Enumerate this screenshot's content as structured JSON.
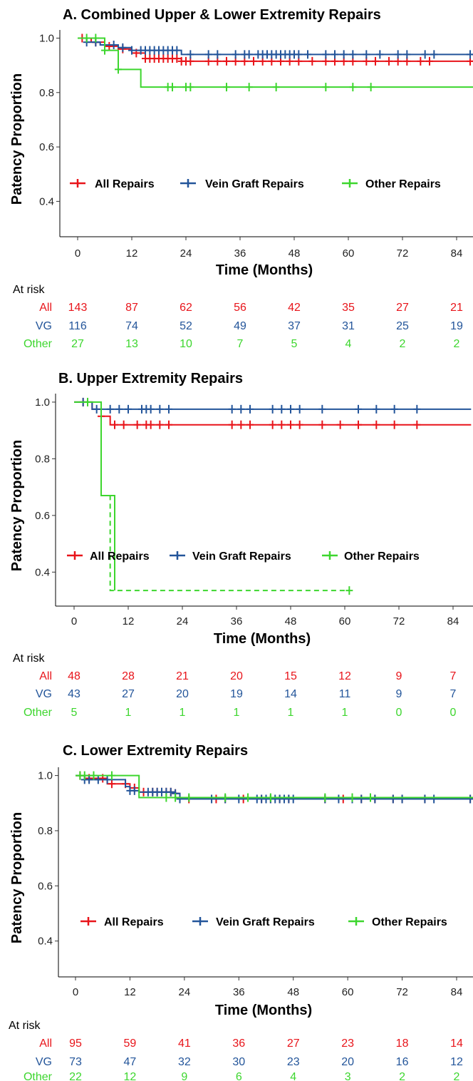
{
  "colors": {
    "all": "#e8141a",
    "vg": "#23559a",
    "other": "#3dd62e"
  },
  "chart_data": [
    {
      "type": "line",
      "title": "A. Combined Upper & Lower Extremity Repairs",
      "xlabel": "Time (Months)",
      "ylabel": "Patency Proportion",
      "xticks": [
        0,
        12,
        24,
        36,
        48,
        60,
        72,
        84
      ],
      "yticks": [
        "0.4",
        "0.6",
        "0.8",
        "1.0"
      ],
      "xlim": [
        -4,
        88
      ],
      "ylim": [
        0.27,
        1.03
      ],
      "legend": [
        "All Repairs",
        "Vein Graft Repairs",
        "Other Repairs"
      ],
      "series": [
        {
          "name": "All Repairs",
          "key": "all",
          "steps": [
            [
              0,
              1.0
            ],
            [
              3,
              0.985
            ],
            [
              6,
              0.97
            ],
            [
              9,
              0.96
            ],
            [
              12,
              0.945
            ],
            [
              15,
              0.925
            ],
            [
              23,
              0.915
            ],
            [
              88,
              0.915
            ]
          ],
          "censors": [
            1,
            4,
            7,
            10,
            13,
            15,
            16,
            17,
            18,
            19,
            20,
            21,
            22,
            23,
            24,
            25,
            29,
            31,
            33,
            35,
            37,
            39,
            41,
            43,
            45,
            47,
            49,
            52,
            55,
            57,
            59,
            61,
            64,
            66,
            69,
            71,
            73,
            76,
            78,
            87
          ]
        },
        {
          "name": "Vein Graft Repairs",
          "key": "vg",
          "steps": [
            [
              0,
              1.0
            ],
            [
              2,
              0.985
            ],
            [
              5,
              0.975
            ],
            [
              9,
              0.965
            ],
            [
              12,
              0.955
            ],
            [
              23,
              0.94
            ],
            [
              88,
              0.94
            ]
          ],
          "censors": [
            2,
            4,
            6,
            8,
            10,
            12,
            14,
            15,
            16,
            17,
            18,
            19,
            20,
            21,
            22,
            25,
            29,
            31,
            35,
            37,
            38,
            40,
            41,
            42,
            43,
            44,
            45,
            46,
            47,
            48,
            49,
            51,
            55,
            57,
            59,
            61,
            64,
            67,
            71,
            73,
            77,
            79,
            87
          ]
        },
        {
          "name": "Other Repairs",
          "key": "other",
          "steps": [
            [
              0,
              1.0
            ],
            [
              6,
              0.955
            ],
            [
              9,
              0.885
            ],
            [
              14,
              0.82
            ],
            [
              88,
              0.82
            ]
          ],
          "censors": [
            2,
            4,
            6,
            9,
            20,
            21,
            24,
            25,
            33,
            38,
            44,
            55,
            61,
            65
          ]
        }
      ],
      "risk_table": {
        "header": "At risk",
        "rows": [
          {
            "label": "All",
            "key": "all",
            "values": [
              "143",
              "87",
              "62",
              "56",
              "42",
              "35",
              "27",
              "21"
            ]
          },
          {
            "label": "VG",
            "key": "vg",
            "values": [
              "116",
              "74",
              "52",
              "49",
              "37",
              "31",
              "25",
              "19"
            ]
          },
          {
            "label": "Other",
            "key": "other",
            "values": [
              "27",
              "13",
              "10",
              "7",
              "5",
              "4",
              "2",
              "2"
            ]
          }
        ]
      }
    },
    {
      "type": "line",
      "title": "B. Upper Extremity Repairs",
      "xlabel": "Time (Months)",
      "ylabel": "Patency Proportion",
      "xticks": [
        0,
        12,
        24,
        36,
        48,
        60,
        72,
        84
      ],
      "yticks": [
        "0.4",
        "0.6",
        "0.8",
        "1.0"
      ],
      "xlim": [
        -4,
        88
      ],
      "ylim": [
        0.28,
        1.03
      ],
      "legend": [
        "All Repairs",
        "Vein Graft Repairs",
        "Other Repairs"
      ],
      "series": [
        {
          "name": "All Repairs",
          "key": "all",
          "steps": [
            [
              0,
              1.0
            ],
            [
              4,
              0.975
            ],
            [
              6,
              0.95
            ],
            [
              8,
              0.92
            ],
            [
              88,
              0.92
            ]
          ],
          "censors": [
            2,
            6,
            9,
            11,
            14,
            16,
            17,
            19,
            21,
            35,
            37,
            39,
            44,
            46,
            48,
            50,
            55,
            59,
            63,
            67,
            71,
            76
          ]
        },
        {
          "name": "Vein Graft Repairs",
          "key": "vg",
          "steps": [
            [
              0,
              1.0
            ],
            [
              4,
              0.975
            ],
            [
              88,
              0.975
            ]
          ],
          "censors": [
            2,
            5,
            8,
            10,
            12,
            15,
            16,
            17,
            19,
            21,
            35,
            37,
            39,
            44,
            46,
            48,
            50,
            55,
            63,
            67,
            71,
            76
          ]
        },
        {
          "name": "Other Repairs",
          "key": "other",
          "steps": [
            [
              0,
              1.0
            ],
            [
              6,
              0.67
            ],
            [
              9,
              0.335
            ],
            [
              61,
              0.335
            ]
          ],
          "dashed_from": 8,
          "censors": [
            3,
            61
          ]
        }
      ],
      "risk_table": {
        "header": "At risk",
        "rows": [
          {
            "label": "All",
            "key": "all",
            "values": [
              "48",
              "28",
              "21",
              "20",
              "15",
              "12",
              "9",
              "7"
            ]
          },
          {
            "label": "VG",
            "key": "vg",
            "values": [
              "43",
              "27",
              "20",
              "19",
              "14",
              "11",
              "9",
              "7"
            ]
          },
          {
            "label": "Other",
            "key": "other",
            "values": [
              "5",
              "1",
              "1",
              "1",
              "1",
              "1",
              "0",
              "0"
            ]
          }
        ]
      }
    },
    {
      "type": "line",
      "title": "C. Lower Extremity Repairs",
      "xlabel": "Time (Months)",
      "ylabel": "Patency Proportion",
      "xticks": [
        0,
        12,
        24,
        36,
        48,
        60,
        72,
        84
      ],
      "yticks": [
        "0.4",
        "0.6",
        "0.8",
        "1.0"
      ],
      "xlim": [
        -4,
        88
      ],
      "ylim": [
        0.27,
        1.03
      ],
      "legend": [
        "All Repairs",
        "Vein Graft Repairs",
        "Other Repairs"
      ],
      "series": [
        {
          "name": "All Repairs",
          "key": "all",
          "steps": [
            [
              0,
              1.0
            ],
            [
              3,
              0.99
            ],
            [
              7,
              0.97
            ],
            [
              12,
              0.955
            ],
            [
              14,
              0.94
            ],
            [
              22,
              0.935
            ],
            [
              23,
              0.915
            ],
            [
              88,
              0.915
            ]
          ],
          "censors": [
            1,
            3,
            6,
            8,
            11,
            13,
            15,
            17,
            18,
            19,
            20,
            21,
            22,
            23,
            25,
            31,
            33,
            37,
            41,
            43,
            45,
            47,
            55,
            59,
            61,
            63,
            66,
            70,
            72,
            77,
            87
          ]
        },
        {
          "name": "Vein Graft Repairs",
          "key": "vg",
          "steps": [
            [
              0,
              1.0
            ],
            [
              2,
              0.985
            ],
            [
              11,
              0.96
            ],
            [
              12,
              0.945
            ],
            [
              14,
              0.94
            ],
            [
              22,
              0.935
            ],
            [
              23,
              0.915
            ],
            [
              88,
              0.915
            ]
          ],
          "censors": [
            2,
            3,
            5,
            7,
            12,
            13,
            16,
            17,
            18,
            19,
            20,
            21,
            22,
            23,
            30,
            33,
            36,
            40,
            41,
            42,
            43,
            44,
            45,
            46,
            47,
            48,
            55,
            58,
            61,
            63,
            66,
            70,
            72,
            77,
            79,
            87
          ]
        },
        {
          "name": "Other Repairs",
          "key": "other",
          "steps": [
            [
              0,
              1.0
            ],
            [
              14,
              0.92
            ],
            [
              88,
              0.92
            ]
          ],
          "censors": [
            1,
            2,
            4,
            8,
            20,
            22,
            25,
            33,
            38,
            43,
            55,
            61,
            65
          ]
        }
      ],
      "risk_table": {
        "header": "At risk",
        "rows": [
          {
            "label": "All",
            "key": "all",
            "values": [
              "95",
              "59",
              "41",
              "36",
              "27",
              "23",
              "18",
              "14"
            ]
          },
          {
            "label": "VG",
            "key": "vg",
            "values": [
              "73",
              "47",
              "32",
              "30",
              "23",
              "20",
              "16",
              "12"
            ]
          },
          {
            "label": "Other",
            "key": "other",
            "values": [
              "22",
              "12",
              "9",
              "6",
              "4",
              "3",
              "2",
              "2"
            ]
          }
        ]
      }
    }
  ]
}
